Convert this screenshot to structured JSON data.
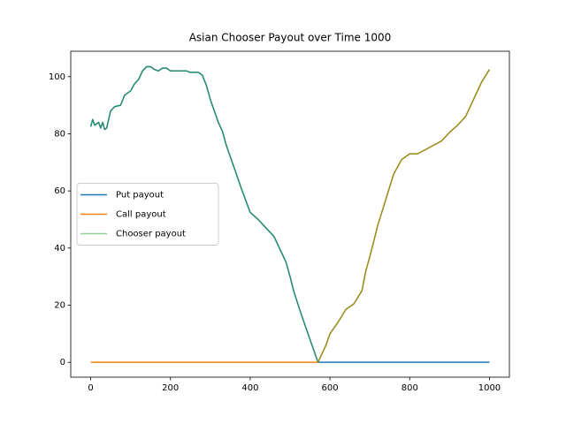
{
  "chart_data": {
    "type": "line",
    "title": "Asian Chooser Payout over Time 1000",
    "x": [
      0,
      5,
      10,
      20,
      25,
      30,
      35,
      40,
      50,
      60,
      75,
      85,
      100,
      110,
      120,
      130,
      140,
      150,
      160,
      170,
      180,
      190,
      200,
      220,
      240,
      250,
      260,
      270,
      280,
      290,
      300,
      320,
      330,
      340,
      360,
      380,
      400,
      420,
      440,
      460,
      480,
      490,
      500,
      510,
      530,
      550,
      570,
      580,
      590,
      600,
      620,
      640,
      660,
      680,
      690,
      700,
      720,
      740,
      760,
      780,
      800,
      820,
      840,
      860,
      880,
      900,
      920,
      940,
      960,
      980,
      1000
    ],
    "series": [
      {
        "name": "Put payout",
        "color": "#1f77b4",
        "alpha": 1,
        "values": [
          82.5,
          85,
          83,
          84,
          82,
          84,
          81.5,
          82,
          88,
          89.5,
          90,
          93.5,
          95,
          97.5,
          99,
          102,
          103.5,
          103.5,
          102.5,
          102,
          103,
          103,
          102,
          102,
          102,
          101.5,
          101.5,
          101.5,
          100.5,
          97,
          92,
          84,
          81,
          76,
          68,
          60,
          52.5,
          50,
          47,
          44,
          38,
          35,
          30,
          24.5,
          16,
          8,
          0,
          0,
          0,
          0,
          0,
          0,
          0,
          0,
          0,
          0,
          0,
          0,
          0,
          0,
          0,
          0,
          0,
          0,
          0,
          0,
          0,
          0,
          0,
          0,
          0
        ]
      },
      {
        "name": "Call payout",
        "color": "#ff7f0e",
        "alpha": 1,
        "values": [
          0,
          0,
          0,
          0,
          0,
          0,
          0,
          0,
          0,
          0,
          0,
          0,
          0,
          0,
          0,
          0,
          0,
          0,
          0,
          0,
          0,
          0,
          0,
          0,
          0,
          0,
          0,
          0,
          0,
          0,
          0,
          0,
          0,
          0,
          0,
          0,
          0,
          0,
          0,
          0,
          0,
          0,
          0,
          0,
          0,
          0,
          0,
          3,
          6,
          10,
          14,
          18.5,
          20.5,
          25,
          32,
          37,
          48,
          57,
          66,
          71,
          73,
          73,
          74.5,
          76,
          77.5,
          80.5,
          83,
          86,
          92,
          98,
          102.5
        ]
      },
      {
        "name": "Chooser payout",
        "color": "#2ca02c",
        "alpha": 0.5,
        "values": [
          82.5,
          85,
          83,
          84,
          82,
          84,
          81.5,
          82,
          88,
          89.5,
          90,
          93.5,
          95,
          97.5,
          99,
          102,
          103.5,
          103.5,
          102.5,
          102,
          103,
          103,
          102,
          102,
          102,
          101.5,
          101.5,
          101.5,
          100.5,
          97,
          92,
          84,
          81,
          76,
          68,
          60,
          52.5,
          50,
          47,
          44,
          38,
          35,
          30,
          24.5,
          16,
          8,
          0,
          3,
          6,
          10,
          14,
          18.5,
          20.5,
          25,
          32,
          37,
          48,
          57,
          66,
          71,
          73,
          73,
          74.5,
          76,
          77.5,
          80.5,
          83,
          86,
          92,
          98,
          102.5
        ]
      }
    ],
    "xlim": [
      -50,
      1050
    ],
    "ylim": [
      -5.2,
      108.9
    ],
    "xticks": [
      0,
      200,
      400,
      600,
      800,
      1000
    ],
    "yticks": [
      0,
      20,
      40,
      60,
      80,
      100
    ],
    "grid": false,
    "legend": "center left"
  }
}
